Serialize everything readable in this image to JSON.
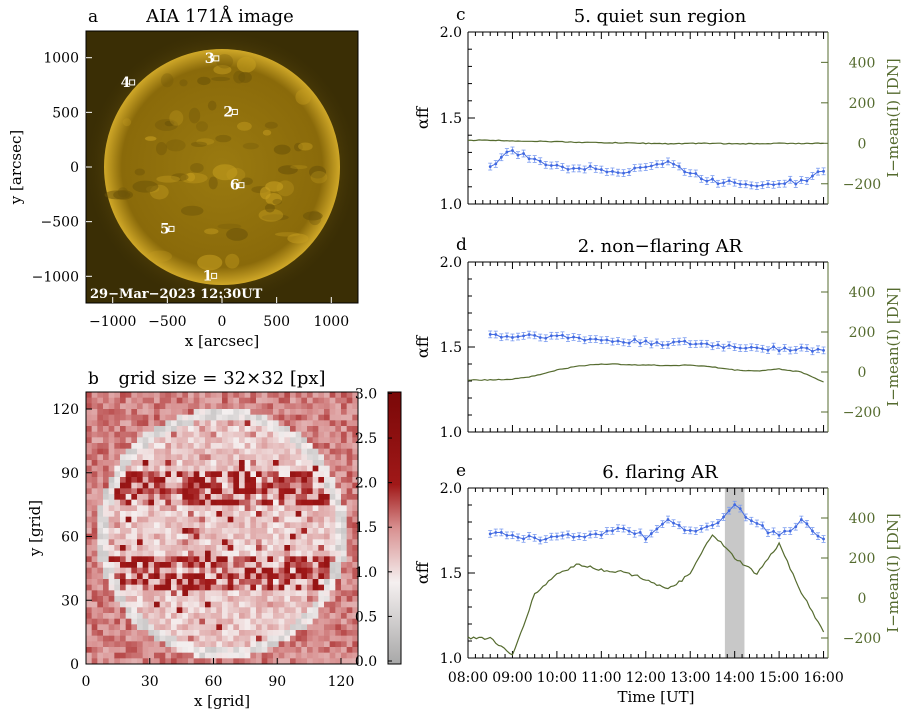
{
  "panel_a": {
    "letter": "a",
    "title": "AIA 171Å image",
    "xlabel": "x [arcsec]",
    "ylabel": "y [arcsec]",
    "xticks": [
      "−1000",
      "−500",
      "0",
      "500",
      "1000"
    ],
    "yticks": [
      "1000",
      "500",
      "0",
      "−500",
      "−1000"
    ],
    "timestamp": "29−Mar−2023 12:30UT",
    "regions": [
      {
        "label": "1",
        "x": -150,
        "y": -1010
      },
      {
        "label": "2",
        "x": 40,
        "y": 490
      },
      {
        "label": "3",
        "x": -130,
        "y": 980
      },
      {
        "label": "4",
        "x": -900,
        "y": 760
      },
      {
        "label": "5",
        "x": -540,
        "y": -580
      },
      {
        "label": "6",
        "x": 100,
        "y": -180
      }
    ],
    "colors": {
      "disk": "#9a7a10",
      "background": "#3a2e05",
      "corona": "#c8a020"
    }
  },
  "panel_b": {
    "letter": "b",
    "title": "grid size = 32×32 [px]",
    "xlabel": "x [grid]",
    "ylabel": "y [grid]",
    "xticks": [
      "0",
      "30",
      "60",
      "90",
      "120"
    ],
    "yticks": [
      "120",
      "90",
      "60",
      "30",
      "0"
    ],
    "colorbar_ticks": [
      "3.0",
      "2.5",
      "2.0",
      "1.5",
      "1.0",
      "0.5",
      "0.0"
    ],
    "colorbar_label": "αff",
    "colors": {
      "low": "#c8c8c8",
      "mid": "#f5eaea",
      "high": "#8b1010"
    }
  },
  "chart_data": [
    {
      "type": "line",
      "letter": "c",
      "title": "5. quiet sun region",
      "xlabel": "",
      "ylabel_left": "αff",
      "ylabel_right": "I−mean(I) [DN]",
      "ylim_left": [
        1.0,
        2.0
      ],
      "ylim_right": [
        -300,
        550
      ],
      "yticks_left": [
        "2.0",
        "1.5",
        "1.0"
      ],
      "yticks_right": [
        "400",
        "200",
        "0",
        "−200"
      ],
      "x": [
        8.5,
        9.0,
        9.5,
        10.0,
        10.5,
        11.0,
        11.5,
        12.0,
        12.5,
        13.0,
        13.5,
        14.0,
        14.5,
        15.0,
        15.5,
        16.0
      ],
      "series": [
        {
          "name": "alpha",
          "color": "#4169e1",
          "values": [
            1.22,
            1.31,
            1.25,
            1.22,
            1.21,
            1.2,
            1.19,
            1.22,
            1.24,
            1.18,
            1.13,
            1.13,
            1.11,
            1.13,
            1.13,
            1.19
          ]
        },
        {
          "name": "intensity",
          "color": "#556b2f",
          "values": [
            15,
            12,
            10,
            8,
            5,
            3,
            2,
            0,
            -2,
            -1,
            0,
            -3,
            -2,
            0,
            -1,
            0
          ]
        }
      ],
      "shade": null
    },
    {
      "type": "line",
      "letter": "d",
      "title": "2. non−flaring AR",
      "xlabel": "",
      "ylabel_left": "αff",
      "ylabel_right": "I−mean(I) [DN]",
      "ylim_left": [
        1.0,
        2.0
      ],
      "ylim_right": [
        -300,
        550
      ],
      "yticks_left": [
        "2.0",
        "1.5",
        "1.0"
      ],
      "yticks_right": [
        "400",
        "200",
        "0",
        "−200"
      ],
      "x": [
        8.5,
        9.0,
        9.5,
        10.0,
        10.5,
        11.0,
        11.5,
        12.0,
        12.5,
        13.0,
        13.5,
        14.0,
        14.5,
        15.0,
        15.5,
        16.0
      ],
      "series": [
        {
          "name": "alpha",
          "color": "#4169e1",
          "values": [
            1.57,
            1.56,
            1.57,
            1.56,
            1.55,
            1.54,
            1.53,
            1.53,
            1.52,
            1.52,
            1.51,
            1.5,
            1.5,
            1.49,
            1.49,
            1.48
          ]
        },
        {
          "name": "intensity",
          "color": "#556b2f",
          "values": [
            -40,
            -35,
            -20,
            10,
            30,
            40,
            38,
            35,
            32,
            35,
            25,
            10,
            5,
            15,
            0,
            -50
          ]
        }
      ],
      "shade": null
    },
    {
      "type": "line",
      "letter": "e",
      "title": "6. flaring AR",
      "xlabel": "Time [UT]",
      "ylabel_left": "αff",
      "ylabel_right": "I−mean(I) [DN]",
      "ylim_left": [
        1.0,
        2.0
      ],
      "ylim_right": [
        -300,
        550
      ],
      "yticks_left": [
        "2.0",
        "1.5",
        "1.0"
      ],
      "yticks_right": [
        "400",
        "200",
        "0",
        "−200"
      ],
      "xticks": [
        "08:00",
        "09:00",
        "10:00",
        "11:00",
        "12:00",
        "13:00",
        "14:00",
        "15:00",
        "16:00"
      ],
      "x": [
        8.5,
        9.0,
        9.5,
        10.0,
        10.5,
        11.0,
        11.5,
        12.0,
        12.5,
        13.0,
        13.5,
        14.0,
        14.5,
        15.0,
        15.5,
        16.0
      ],
      "series": [
        {
          "name": "alpha",
          "color": "#4169e1",
          "values": [
            1.74,
            1.72,
            1.7,
            1.72,
            1.71,
            1.72,
            1.77,
            1.71,
            1.8,
            1.75,
            1.78,
            1.9,
            1.78,
            1.72,
            1.8,
            1.7
          ]
        },
        {
          "name": "intensity",
          "color": "#556b2f",
          "values": [
            -200,
            -290,
            20,
            120,
            170,
            140,
            130,
            95,
            40,
            120,
            320,
            200,
            120,
            270,
            30,
            -170
          ]
        }
      ],
      "shade": {
        "from": 13.78,
        "to": 14.22,
        "color": "#c8c8c8"
      }
    }
  ]
}
